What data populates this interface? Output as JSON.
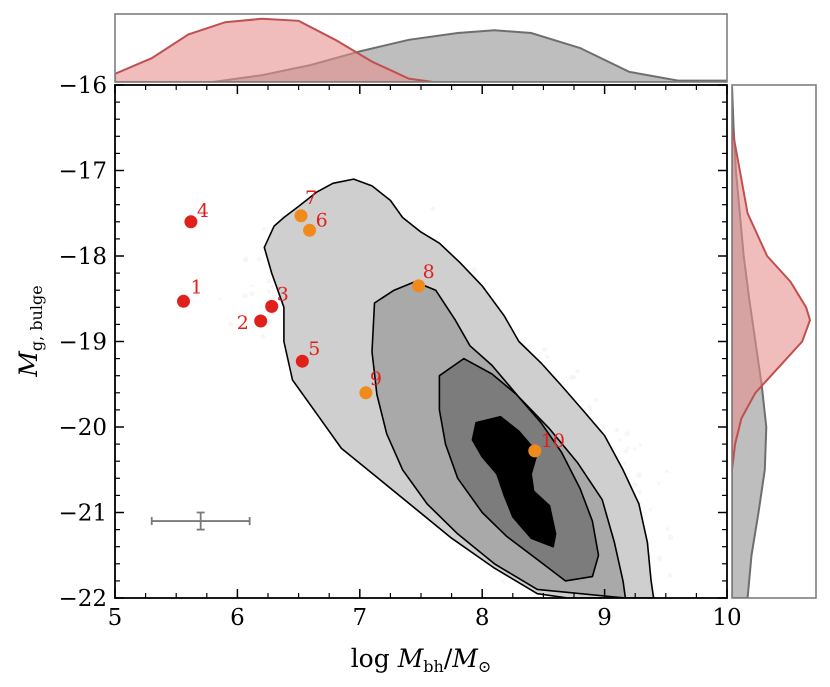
{
  "chart_data": {
    "type": "scatter",
    "title": "",
    "xlabel": {
      "prefix": "log ",
      "main": "M",
      "sub": "bh",
      "slash": "/",
      "main2": "M",
      "sub2": "⊙"
    },
    "ylabel": {
      "main": "M",
      "sub": "g, bulge"
    },
    "xlim": [
      5,
      10
    ],
    "ylim": [
      -22,
      -16
    ],
    "x_ticks": [
      5,
      6,
      7,
      8,
      9,
      10
    ],
    "x_tick_labels": [
      "5",
      "6",
      "7",
      "8",
      "9",
      "10"
    ],
    "y_ticks": [
      -22,
      -21,
      -20,
      -19,
      -18,
      -17,
      -16
    ],
    "y_tick_labels": [
      "−22",
      "−21",
      "−20",
      "−19",
      "−18",
      "−17",
      "−16"
    ],
    "background": "grey point-density cloud with filled density contours",
    "contours": [
      {
        "level": 1,
        "color": "#cfcfcf",
        "points": [
          [
            6.78,
            -17.15
          ],
          [
            6.95,
            -17.1
          ],
          [
            7.1,
            -17.18
          ],
          [
            7.25,
            -17.35
          ],
          [
            7.35,
            -17.55
          ],
          [
            7.5,
            -17.72
          ],
          [
            7.65,
            -17.85
          ],
          [
            7.82,
            -18.08
          ],
          [
            8.0,
            -18.35
          ],
          [
            8.18,
            -18.7
          ],
          [
            8.3,
            -19.0
          ],
          [
            8.48,
            -19.25
          ],
          [
            8.65,
            -19.52
          ],
          [
            8.82,
            -19.8
          ],
          [
            9.0,
            -20.1
          ],
          [
            9.15,
            -20.5
          ],
          [
            9.28,
            -20.9
          ],
          [
            9.35,
            -21.35
          ],
          [
            9.38,
            -21.8
          ],
          [
            9.4,
            -22.0
          ],
          [
            8.7,
            -22.0
          ],
          [
            8.45,
            -21.95
          ],
          [
            8.1,
            -21.65
          ],
          [
            7.75,
            -21.3
          ],
          [
            7.45,
            -20.95
          ],
          [
            7.15,
            -20.6
          ],
          [
            6.85,
            -20.25
          ],
          [
            6.65,
            -19.85
          ],
          [
            6.45,
            -19.45
          ],
          [
            6.38,
            -19.0
          ],
          [
            6.38,
            -18.6
          ],
          [
            6.28,
            -18.2
          ],
          [
            6.22,
            -17.9
          ],
          [
            6.3,
            -17.65
          ],
          [
            6.38,
            -17.55
          ],
          [
            6.5,
            -17.42
          ],
          [
            6.65,
            -17.25
          ]
        ]
      },
      {
        "level": 2,
        "color": "#a9a9a9",
        "points": [
          [
            7.12,
            -18.55
          ],
          [
            7.28,
            -18.4
          ],
          [
            7.45,
            -18.3
          ],
          [
            7.62,
            -18.4
          ],
          [
            7.78,
            -18.75
          ],
          [
            7.9,
            -19.05
          ],
          [
            8.08,
            -19.28
          ],
          [
            8.3,
            -19.65
          ],
          [
            8.55,
            -20.02
          ],
          [
            8.78,
            -20.42
          ],
          [
            8.98,
            -20.85
          ],
          [
            9.08,
            -21.35
          ],
          [
            9.15,
            -21.8
          ],
          [
            9.17,
            -22.0
          ],
          [
            8.45,
            -21.9
          ],
          [
            8.1,
            -21.6
          ],
          [
            7.8,
            -21.25
          ],
          [
            7.55,
            -20.9
          ],
          [
            7.35,
            -20.5
          ],
          [
            7.22,
            -20.08
          ],
          [
            7.14,
            -19.62
          ],
          [
            7.1,
            -19.12
          ]
        ]
      },
      {
        "level": 3,
        "color": "#7c7c7c",
        "points": [
          [
            7.65,
            -19.4
          ],
          [
            7.85,
            -19.2
          ],
          [
            8.08,
            -19.38
          ],
          [
            8.28,
            -19.62
          ],
          [
            8.48,
            -19.95
          ],
          [
            8.65,
            -20.3
          ],
          [
            8.8,
            -20.72
          ],
          [
            8.9,
            -21.1
          ],
          [
            8.95,
            -21.5
          ],
          [
            8.9,
            -21.75
          ],
          [
            8.68,
            -21.8
          ],
          [
            8.45,
            -21.55
          ],
          [
            8.2,
            -21.28
          ],
          [
            8.0,
            -21.0
          ],
          [
            7.8,
            -20.6
          ],
          [
            7.7,
            -20.2
          ],
          [
            7.65,
            -19.8
          ]
        ]
      },
      {
        "level": 4,
        "color": "#000000",
        "points": [
          [
            7.95,
            -19.95
          ],
          [
            8.15,
            -19.88
          ],
          [
            8.3,
            -20.05
          ],
          [
            8.45,
            -20.3
          ],
          [
            8.4,
            -20.55
          ],
          [
            8.42,
            -20.75
          ],
          [
            8.55,
            -20.92
          ],
          [
            8.6,
            -21.25
          ],
          [
            8.58,
            -21.4
          ],
          [
            8.4,
            -21.3
          ],
          [
            8.25,
            -21.05
          ],
          [
            8.18,
            -20.8
          ],
          [
            8.12,
            -20.55
          ],
          [
            8.0,
            -20.35
          ],
          [
            7.92,
            -20.15
          ]
        ]
      }
    ],
    "series": [
      {
        "name": "red galaxies",
        "color": "#e0201b",
        "points": [
          {
            "label": "1",
            "x": 5.56,
            "y": -18.53
          },
          {
            "label": "2",
            "x": 6.19,
            "y": -18.76
          },
          {
            "label": "3",
            "x": 6.28,
            "y": -18.59
          },
          {
            "label": "4",
            "x": 5.62,
            "y": -17.6
          },
          {
            "label": "5",
            "x": 6.53,
            "y": -19.23
          }
        ]
      },
      {
        "name": "orange galaxies",
        "color": "#f08a1a",
        "points": [
          {
            "label": "6",
            "x": 6.59,
            "y": -17.7
          },
          {
            "label": "7",
            "x": 6.52,
            "y": -17.53
          },
          {
            "label": "8",
            "x": 7.48,
            "y": -18.35
          },
          {
            "label": "9",
            "x": 7.05,
            "y": -19.6
          },
          {
            "label": "10",
            "x": 8.43,
            "y": -20.28
          }
        ]
      }
    ],
    "error_bar": {
      "x": 5.7,
      "y": -21.1,
      "x_minus": 0.4,
      "x_plus": 0.4,
      "y_minus": 0.1,
      "y_plus": 0.1,
      "color": "#7a7a7a"
    },
    "top_marginal": {
      "axis": "x",
      "red": {
        "color": "#e89090",
        "x": [
          5.0,
          5.3,
          5.6,
          5.9,
          6.2,
          6.5,
          6.8,
          7.1,
          7.4,
          7.6
        ],
        "density": [
          0.12,
          0.35,
          0.7,
          0.88,
          0.93,
          0.9,
          0.62,
          0.3,
          0.05,
          0.0
        ]
      },
      "grey": {
        "color": "#a8a8a8",
        "x": [
          5.8,
          6.2,
          6.6,
          7.0,
          7.4,
          7.8,
          8.1,
          8.4,
          8.8,
          9.2,
          9.6,
          10.0
        ],
        "density": [
          0.0,
          0.1,
          0.25,
          0.45,
          0.62,
          0.72,
          0.76,
          0.72,
          0.5,
          0.15,
          0.02,
          0.02
        ]
      }
    },
    "right_marginal": {
      "axis": "y",
      "red": {
        "color": "#e89090",
        "y": [
          -16.5,
          -17.0,
          -17.5,
          -18.0,
          -18.3,
          -18.6,
          -18.75,
          -19.0,
          -19.3,
          -19.6,
          -19.9,
          -20.2,
          -20.5
        ],
        "density": [
          0.0,
          0.1,
          0.2,
          0.45,
          0.75,
          0.95,
          1.0,
          0.9,
          0.6,
          0.3,
          0.12,
          0.04,
          0.0
        ]
      },
      "grey": {
        "color": "#a8a8a8",
        "y": [
          -16.0,
          -16.5,
          -17.0,
          -17.5,
          -18.0,
          -18.5,
          -19.0,
          -19.5,
          -20.0,
          -20.5,
          -21.0,
          -21.5,
          -22.0
        ],
        "density": [
          0.0,
          0.02,
          0.05,
          0.1,
          0.15,
          0.22,
          0.3,
          0.38,
          0.44,
          0.42,
          0.34,
          0.25,
          0.2
        ]
      }
    }
  }
}
